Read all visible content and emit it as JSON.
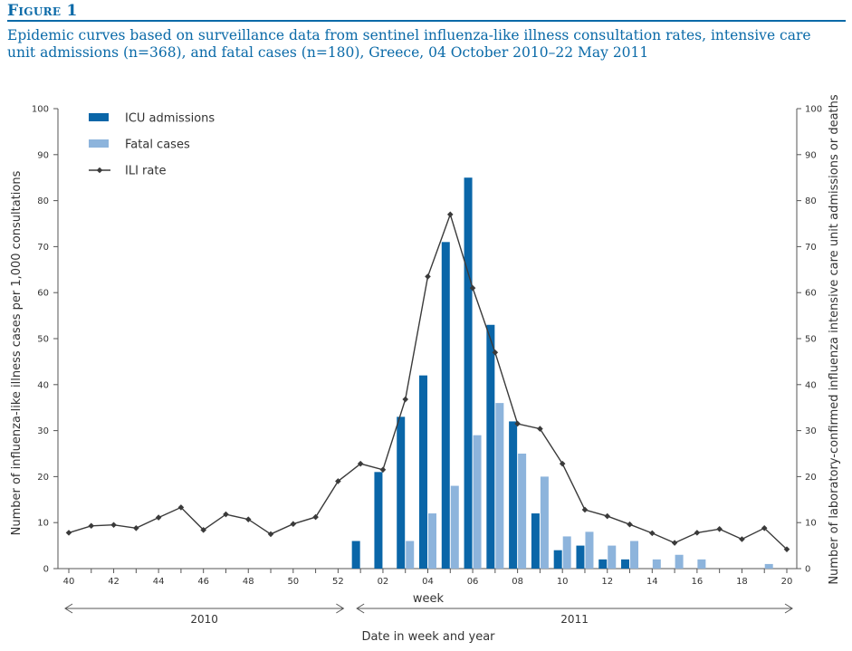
{
  "figure": {
    "label": "Figure 1",
    "caption": "Epidemic curves based on surveillance data from sentinel influenza-like illness consultation rates, intensive care unit admissions (n=368), and fatal cases (n=180), Greece, 04 October 2010–22 May 2011"
  },
  "chart_data": {
    "type": "bar",
    "title": "",
    "xlabel": "Date in week and year",
    "x_caption": "week",
    "ylabel_left": "Number of influenza-like illness cases per 1,000 consultations",
    "ylabel_right": "Number of laboratory-confirmed influenza intensive care unit  admissions or deaths",
    "ylim": [
      0,
      100
    ],
    "y_ticks": [
      0,
      10,
      20,
      30,
      40,
      50,
      60,
      70,
      80,
      90,
      100
    ],
    "weeks": [
      "40",
      "41",
      "42",
      "43",
      "44",
      "45",
      "46",
      "47",
      "48",
      "49",
      "50",
      "51",
      "52",
      "01",
      "02",
      "03",
      "04",
      "05",
      "06",
      "07",
      "08",
      "09",
      "10",
      "11",
      "12",
      "13",
      "14",
      "15",
      "16",
      "17",
      "18",
      "19",
      "20"
    ],
    "x_tick_labels": [
      "40",
      "",
      "42",
      "",
      "44",
      "",
      "46",
      "",
      "48",
      "",
      "50",
      "",
      "52",
      "",
      "02",
      "",
      "04",
      "",
      "06",
      "",
      "08",
      "",
      "10",
      "",
      "12",
      "",
      "14",
      "",
      "16",
      "",
      "18",
      "",
      "20"
    ],
    "year_spans": [
      {
        "label": "2010",
        "from": "40",
        "to": "52"
      },
      {
        "label": "2011",
        "from": "01",
        "to": "20"
      }
    ],
    "legend": [
      "ICU admissions",
      "Fatal cases",
      "ILI rate"
    ],
    "legend_position": "top-left",
    "series": [
      {
        "name": "ICU admissions",
        "type": "bar",
        "axis": "right",
        "values": [
          0,
          0,
          0,
          0,
          0,
          0,
          0,
          0,
          0,
          0,
          0,
          0,
          0,
          6,
          21,
          33,
          42,
          71,
          85,
          53,
          32,
          12,
          4,
          5,
          2,
          2,
          0,
          0,
          0,
          0,
          0,
          0,
          0
        ]
      },
      {
        "name": "Fatal cases",
        "type": "bar",
        "axis": "right",
        "values": [
          0,
          0,
          0,
          0,
          0,
          0,
          0,
          0,
          0,
          0,
          0,
          0,
          0,
          0,
          0,
          6,
          12,
          18,
          29,
          36,
          25,
          20,
          7,
          8,
          5,
          6,
          2,
          3,
          2,
          0,
          0,
          1,
          0
        ]
      },
      {
        "name": "ILI rate",
        "type": "line",
        "axis": "left",
        "values": [
          7.8,
          9.3,
          9.5,
          8.8,
          11.1,
          13.3,
          8.4,
          11.8,
          10.7,
          7.5,
          9.7,
          11.2,
          19.0,
          22.8,
          21.5,
          36.8,
          63.5,
          77.0,
          61.0,
          47.0,
          31.5,
          30.4,
          22.8,
          12.8,
          11.4,
          9.6,
          7.7,
          5.6,
          7.8,
          8.6,
          6.4,
          8.8,
          4.2
        ]
      }
    ],
    "colors": {
      "icu": "#0a66a8",
      "fatal": "#8db4dc",
      "ili": "#3a3a3a",
      "axis": "#555555",
      "text": "#333333"
    }
  }
}
